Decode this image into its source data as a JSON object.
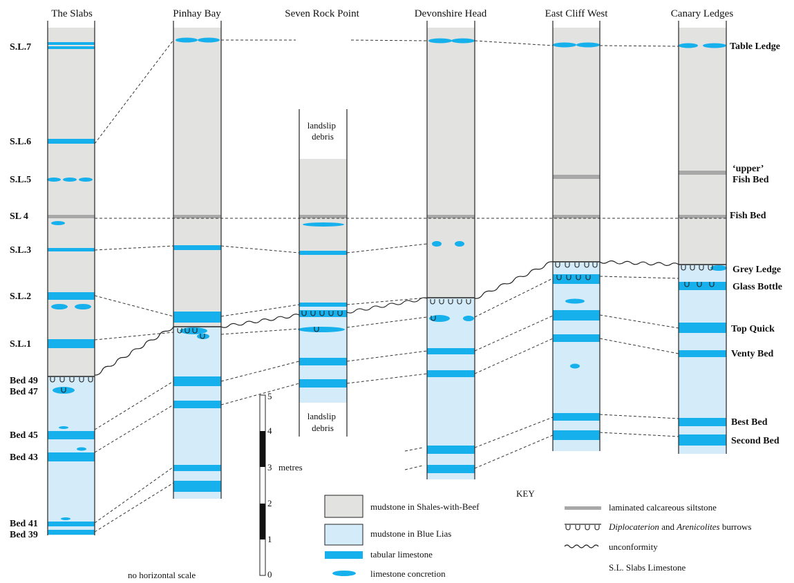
{
  "columns": [
    {
      "name": "The Slabs"
    },
    {
      "name": "Pinhay Bay"
    },
    {
      "name": "Seven Rock Point"
    },
    {
      "name": "Devonshire Head"
    },
    {
      "name": "East Cliff West"
    },
    {
      "name": "Canary Ledges"
    }
  ],
  "left_labels": [
    "S.L.7",
    "S.L.6",
    "S.L.5",
    "SL 4",
    "S.L.3",
    "S.L.2",
    "S.L.1",
    "Bed 49",
    "Bed 47",
    "Bed 45",
    "Bed 43",
    "Bed 41",
    "Bed 39"
  ],
  "right_labels": [
    "Table Ledge",
    "‘upper’",
    "Fish Bed",
    "Fish Bed",
    "Grey Ledge",
    "Glass Bottle",
    "Top Quick",
    "Venty Bed",
    "Best Bed",
    "Second Bed"
  ],
  "landslip": {
    "top": [
      "landslip",
      "debris"
    ],
    "bottom": [
      "landslip",
      "debris"
    ]
  },
  "scale": {
    "ticks": [
      "0",
      "1",
      "2",
      "3",
      "4",
      "5"
    ],
    "unit": "metres",
    "note": "no horizontal scale"
  },
  "key": {
    "title": "KEY",
    "items": [
      {
        "label": "mudstone in Shales-with-Beef",
        "color": "#e2e2e0"
      },
      {
        "label": "mudstone in Blue Lias",
        "color": "#d4ecfa"
      },
      {
        "label": "tabular limestone",
        "color": "#16b1ec"
      },
      {
        "label": "limestone concretion",
        "color": "#16b1ec"
      },
      {
        "label": "laminated calcareous siltstone",
        "color": "#a8a8a8"
      },
      {
        "label_italic_1": "Diplocaterion",
        "label_mid": " and ",
        "label_italic_2": "Arenicolites",
        "label_end": " burrows"
      },
      {
        "label": "unconformity"
      },
      {
        "label": "S.L. Slabs Limestone"
      }
    ]
  },
  "colors": {
    "grey_mudstone": "#e2e2e0",
    "blue_lias": "#d4ecfa",
    "limestone": "#16b1ec",
    "siltstone": "#a8a8a8"
  }
}
